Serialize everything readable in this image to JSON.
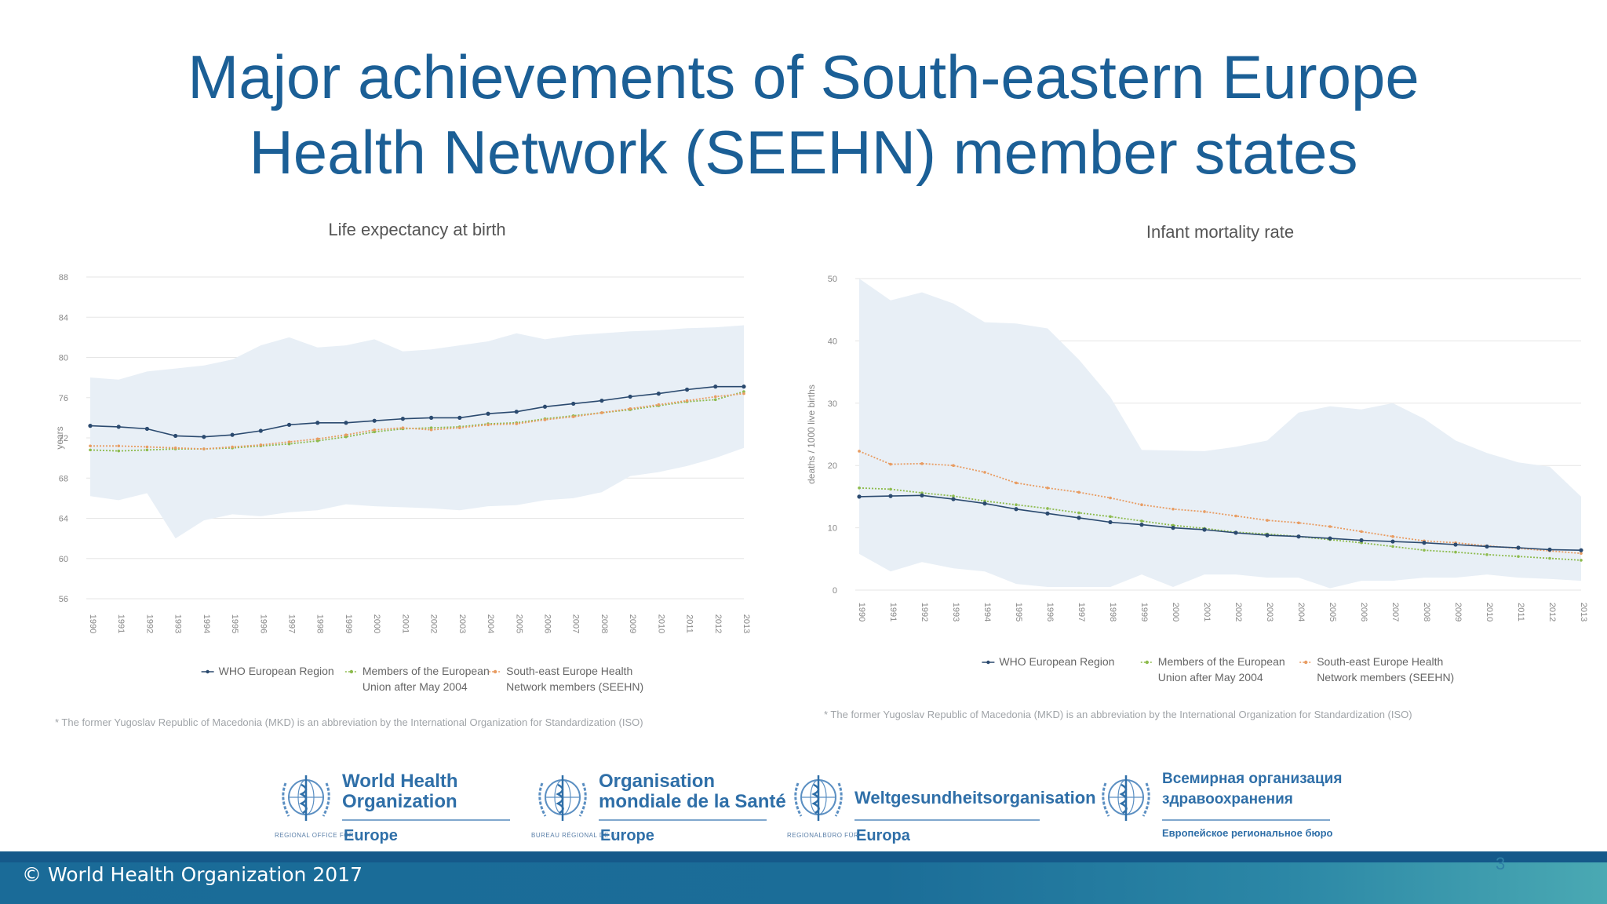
{
  "slide": {
    "title_line1": "Major achievements of South-eastern Europe",
    "title_line2": "Health Network (SEEHN) member states",
    "copyright": "© World Health Organization 2017",
    "page_number": "3"
  },
  "colors": {
    "title": "#1b5f96",
    "band": "#e8eff6",
    "who_region": "#2b4a6f",
    "eu_members": "#8dbb4d",
    "seehn": "#e89c62"
  },
  "chart_data": [
    {
      "type": "line",
      "title": "Life expectancy at birth",
      "ylabel": "years",
      "xlabel": "",
      "ylim": [
        56,
        88
      ],
      "yticks": [
        "56",
        "60",
        "64",
        "68",
        "72",
        "76",
        "80",
        "84",
        "88"
      ],
      "x": [
        "1990",
        "1991",
        "1992",
        "1993",
        "1994",
        "1995",
        "1996",
        "1997",
        "1998",
        "1999",
        "2000",
        "2001",
        "2002",
        "2003",
        "2004",
        "2005",
        "2006",
        "2007",
        "2008",
        "2009",
        "2010",
        "2011",
        "2012",
        "2013"
      ],
      "grid": true,
      "legend_position": "bottom",
      "band": {
        "upper": [
          78.0,
          77.8,
          78.6,
          78.9,
          79.2,
          79.8,
          81.2,
          82.0,
          81.0,
          81.2,
          81.8,
          80.6,
          80.8,
          81.2,
          81.6,
          82.4,
          81.8,
          82.2,
          82.4,
          82.6,
          82.7,
          82.9,
          83.0,
          83.2
        ],
        "lower": [
          66.2,
          65.8,
          66.5,
          62.0,
          63.8,
          64.4,
          64.2,
          64.6,
          64.8,
          65.4,
          65.2,
          65.1,
          65.0,
          64.8,
          65.2,
          65.3,
          65.8,
          66.0,
          66.6,
          68.2,
          68.6,
          69.2,
          70.0,
          71.0
        ]
      },
      "series": [
        {
          "name": "WHO European Region",
          "values": [
            73.2,
            73.1,
            72.9,
            72.2,
            72.1,
            72.3,
            72.7,
            73.3,
            73.5,
            73.5,
            73.7,
            73.9,
            74.0,
            74.0,
            74.4,
            74.6,
            75.1,
            75.4,
            75.7,
            76.1,
            76.4,
            76.8,
            77.1,
            77.1
          ]
        },
        {
          "name": "Members of the European Union after May 2004",
          "values": [
            70.8,
            70.7,
            70.8,
            70.9,
            70.9,
            71.0,
            71.2,
            71.4,
            71.7,
            72.1,
            72.6,
            72.9,
            73.0,
            73.1,
            73.4,
            73.5,
            73.9,
            74.2,
            74.5,
            74.8,
            75.2,
            75.6,
            75.8,
            76.6
          ]
        },
        {
          "name": "South-east Europe Health Network members (SEEHN)",
          "values": [
            71.2,
            71.2,
            71.1,
            71.0,
            70.9,
            71.1,
            71.3,
            71.6,
            71.9,
            72.3,
            72.8,
            73.0,
            72.8,
            73.0,
            73.3,
            73.4,
            73.8,
            74.1,
            74.5,
            74.9,
            75.3,
            75.7,
            76.1,
            76.4
          ]
        }
      ],
      "legend_lines": [
        [
          "WHO European Region"
        ],
        [
          "Members of the European",
          "Union after May 2004"
        ],
        [
          "South-east Europe Health",
          "Network members (SEEHN)"
        ]
      ],
      "footnote": "* The former Yugoslav Republic of Macedonia (MKD) is an abbreviation by the International Organization for Standardization (ISO)"
    },
    {
      "type": "line",
      "title": "Infant mortality rate",
      "ylabel": "deaths / 1000 live births",
      "xlabel": "",
      "ylim": [
        0,
        50
      ],
      "yticks": [
        "0",
        "10",
        "20",
        "30",
        "40",
        "50"
      ],
      "x": [
        "1990",
        "1991",
        "1992",
        "1993",
        "1994",
        "1995",
        "1996",
        "1997",
        "1998",
        "1999",
        "2000",
        "2001",
        "2002",
        "2003",
        "2004",
        "2005",
        "2006",
        "2007",
        "2008",
        "2009",
        "2010",
        "2011",
        "2012",
        "2013"
      ],
      "grid": true,
      "legend_position": "bottom",
      "band": {
        "upper": [
          50.0,
          46.5,
          47.8,
          46.0,
          43.0,
          42.8,
          42.0,
          37.0,
          31.0,
          22.5,
          22.4,
          22.3,
          23.0,
          24.0,
          28.5,
          29.5,
          29.0,
          30.0,
          27.5,
          24.0,
          22.0,
          20.5,
          19.8,
          15.0
        ],
        "lower": [
          5.8,
          3.0,
          4.5,
          3.5,
          3.0,
          1.0,
          0.5,
          0.5,
          0.5,
          2.5,
          0.5,
          2.5,
          2.5,
          2.0,
          2.0,
          0.3,
          1.5,
          1.5,
          2.0,
          2.0,
          2.5,
          2.0,
          1.8,
          1.5
        ]
      },
      "series": [
        {
          "name": "WHO European Region",
          "values": [
            15.0,
            15.1,
            15.2,
            14.6,
            13.9,
            13.0,
            12.3,
            11.6,
            10.9,
            10.5,
            10.0,
            9.7,
            9.2,
            8.8,
            8.6,
            8.3,
            8.0,
            7.8,
            7.6,
            7.3,
            7.0,
            6.8,
            6.5,
            6.4
          ]
        },
        {
          "name": "Members of the European Union after May 2004",
          "values": [
            16.4,
            16.2,
            15.6,
            15.1,
            14.3,
            13.7,
            13.1,
            12.4,
            11.8,
            11.1,
            10.4,
            9.9,
            9.3,
            9.0,
            8.6,
            8.1,
            7.6,
            7.0,
            6.4,
            6.1,
            5.7,
            5.4,
            5.1,
            4.8
          ]
        },
        {
          "name": "South-east Europe Health Network members (SEEHN)",
          "values": [
            22.3,
            20.2,
            20.3,
            20.0,
            18.9,
            17.2,
            16.4,
            15.7,
            14.8,
            13.7,
            13.0,
            12.6,
            11.9,
            11.2,
            10.8,
            10.2,
            9.4,
            8.6,
            7.9,
            7.6,
            7.1,
            6.7,
            6.3,
            5.9
          ]
        }
      ],
      "legend_lines": [
        [
          "WHO European Region"
        ],
        [
          "Members of the European",
          "Union after May 2004"
        ],
        [
          "South-east Europe Health",
          "Network members (SEEHN)"
        ]
      ],
      "footnote": "* The former Yugoslav Republic of Macedonia (MKD) is an abbreviation by the International Organization for Standardization (ISO)"
    }
  ],
  "logos": [
    {
      "name_lines": [
        "World Health",
        "Organization"
      ],
      "sub": "REGIONAL OFFICE FOR",
      "region": "Europe"
    },
    {
      "name_lines": [
        "Organisation",
        "mondiale de la Santé"
      ],
      "sub": "BUREAU RÉGIONAL DE L'",
      "region": "Europe"
    },
    {
      "name_lines": [
        "Weltgesundheitsorganisation"
      ],
      "sub": "REGIONALBÜRO FÜR",
      "region": "Europa"
    },
    {
      "name_lines": [
        "Всемирная организация",
        "здравоохранения"
      ],
      "sub": "",
      "region": "Европейское региональное бюро"
    }
  ]
}
